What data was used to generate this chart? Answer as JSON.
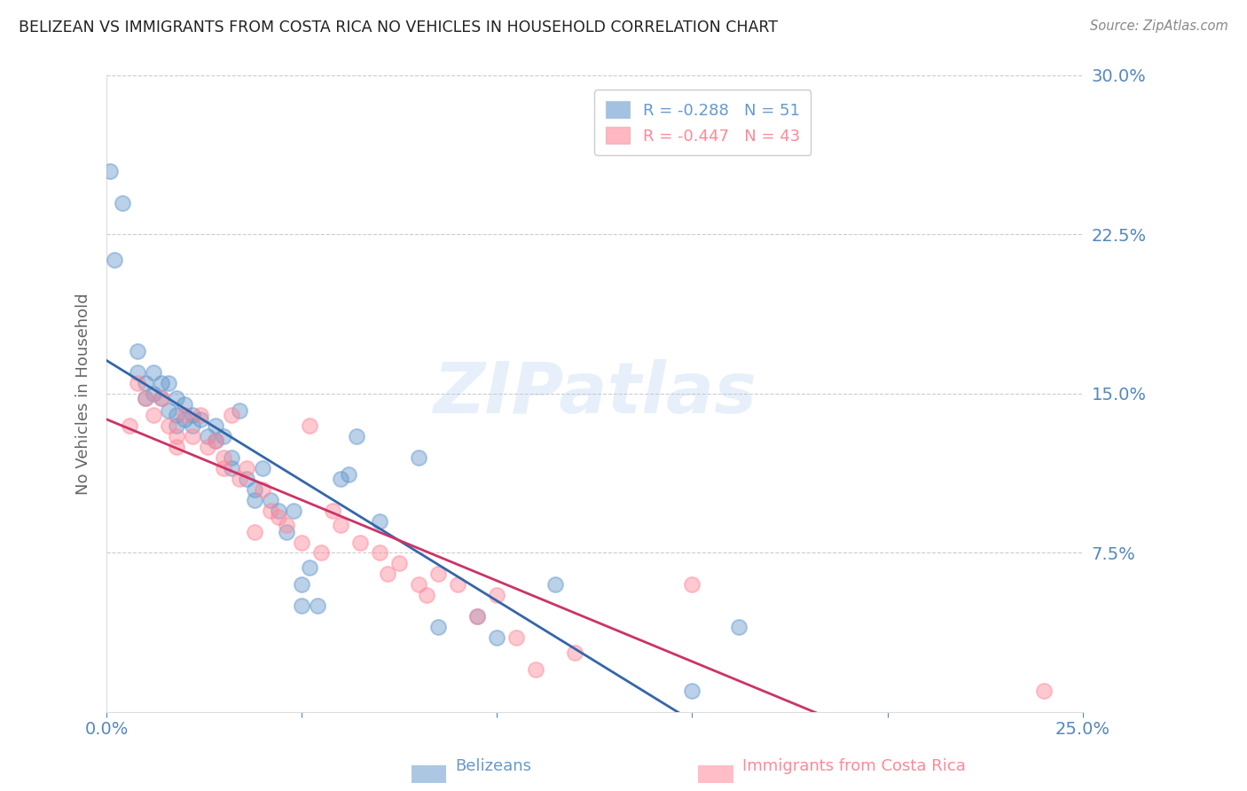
{
  "title": "BELIZEAN VS IMMIGRANTS FROM COSTA RICA NO VEHICLES IN HOUSEHOLD CORRELATION CHART",
  "source": "Source: ZipAtlas.com",
  "ylabel": "No Vehicles in Household",
  "xlim": [
    0.0,
    0.25
  ],
  "ylim": [
    0.0,
    0.3
  ],
  "xticks": [
    0.0,
    0.05,
    0.1,
    0.15,
    0.2,
    0.25
  ],
  "yticks": [
    0.075,
    0.15,
    0.225,
    0.3
  ],
  "ytick_labels": [
    "7.5%",
    "15.0%",
    "22.5%",
    "30.0%"
  ],
  "xtick_labels": [
    "0.0%",
    "",
    "",
    "",
    "",
    "25.0%"
  ],
  "blue_R": -0.288,
  "blue_N": 51,
  "pink_R": -0.447,
  "pink_N": 43,
  "blue_color": "#6699cc",
  "pink_color": "#ff8899",
  "blue_line_color": "#3366aa",
  "pink_line_color": "#cc3366",
  "blue_label": "Belizeans",
  "pink_label": "Immigrants from Costa Rica",
  "title_color": "#222222",
  "axis_label_color": "#666666",
  "tick_color": "#5588bb",
  "grid_color": "#cccccc",
  "watermark": "ZIPatlas",
  "blue_scatter_x": [
    0.001,
    0.004,
    0.002,
    0.008,
    0.008,
    0.01,
    0.012,
    0.01,
    0.012,
    0.014,
    0.014,
    0.016,
    0.016,
    0.018,
    0.018,
    0.018,
    0.02,
    0.02,
    0.022,
    0.022,
    0.024,
    0.026,
    0.028,
    0.028,
    0.03,
    0.032,
    0.032,
    0.034,
    0.036,
    0.038,
    0.038,
    0.04,
    0.042,
    0.044,
    0.046,
    0.048,
    0.05,
    0.05,
    0.052,
    0.054,
    0.06,
    0.062,
    0.064,
    0.07,
    0.08,
    0.085,
    0.095,
    0.1,
    0.115,
    0.15,
    0.162
  ],
  "blue_scatter_y": [
    0.255,
    0.24,
    0.213,
    0.16,
    0.17,
    0.155,
    0.16,
    0.148,
    0.15,
    0.155,
    0.148,
    0.142,
    0.155,
    0.148,
    0.14,
    0.135,
    0.145,
    0.138,
    0.135,
    0.14,
    0.138,
    0.13,
    0.135,
    0.128,
    0.13,
    0.115,
    0.12,
    0.142,
    0.11,
    0.1,
    0.105,
    0.115,
    0.1,
    0.095,
    0.085,
    0.095,
    0.06,
    0.05,
    0.068,
    0.05,
    0.11,
    0.112,
    0.13,
    0.09,
    0.12,
    0.04,
    0.045,
    0.035,
    0.06,
    0.01,
    0.04
  ],
  "pink_scatter_x": [
    0.006,
    0.008,
    0.01,
    0.012,
    0.014,
    0.016,
    0.018,
    0.018,
    0.02,
    0.022,
    0.024,
    0.026,
    0.028,
    0.03,
    0.03,
    0.032,
    0.034,
    0.036,
    0.038,
    0.04,
    0.042,
    0.044,
    0.046,
    0.05,
    0.052,
    0.055,
    0.058,
    0.06,
    0.065,
    0.07,
    0.072,
    0.075,
    0.08,
    0.082,
    0.085,
    0.09,
    0.095,
    0.1,
    0.105,
    0.11,
    0.12,
    0.15,
    0.24
  ],
  "pink_scatter_y": [
    0.135,
    0.155,
    0.148,
    0.14,
    0.148,
    0.135,
    0.13,
    0.125,
    0.14,
    0.13,
    0.14,
    0.125,
    0.128,
    0.12,
    0.115,
    0.14,
    0.11,
    0.115,
    0.085,
    0.105,
    0.095,
    0.092,
    0.088,
    0.08,
    0.135,
    0.075,
    0.095,
    0.088,
    0.08,
    0.075,
    0.065,
    0.07,
    0.06,
    0.055,
    0.065,
    0.06,
    0.045,
    0.055,
    0.035,
    0.02,
    0.028,
    0.06,
    0.01
  ]
}
